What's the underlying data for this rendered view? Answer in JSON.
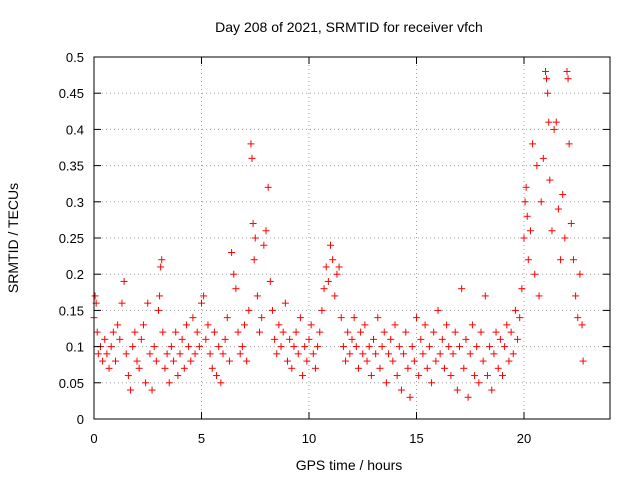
{
  "chart_data": {
    "type": "scatter",
    "title": "Day 208 of 2021, SRMTID for receiver vfch",
    "xlabel": "GPS time / hours",
    "ylabel": "SRMTID / TECUs",
    "xlim": [
      0,
      24
    ],
    "ylim": [
      0,
      0.5
    ],
    "x_ticks": [
      0,
      5,
      10,
      15,
      20
    ],
    "y_ticks": [
      0,
      0.05,
      0.1,
      0.15,
      0.2,
      0.25,
      0.3,
      0.35,
      0.4,
      0.45,
      0.5
    ],
    "x_tick_labels": [
      "0",
      "5",
      "10",
      "15",
      "20"
    ],
    "y_tick_labels": [
      "0",
      "0.05",
      "0.1",
      "0.15",
      "0.2",
      "0.25",
      "0.3",
      "0.35",
      "0.4",
      "0.45",
      "0.5"
    ],
    "grid": true,
    "marker": "+",
    "marker_color": "#ff0000",
    "series": [
      {
        "name": "SRMTID",
        "points": [
          [
            0.0,
            0.14
          ],
          [
            0.05,
            0.17
          ],
          [
            0.1,
            0.16
          ],
          [
            0.15,
            0.12
          ],
          [
            0.2,
            0.09
          ],
          [
            0.3,
            0.1
          ],
          [
            0.4,
            0.08
          ],
          [
            0.5,
            0.11
          ],
          [
            0.6,
            0.09
          ],
          [
            0.7,
            0.07
          ],
          [
            0.8,
            0.1
          ],
          [
            0.9,
            0.12
          ],
          [
            1.0,
            0.08
          ],
          [
            1.1,
            0.13
          ],
          [
            1.2,
            0.11
          ],
          [
            1.3,
            0.16
          ],
          [
            1.4,
            0.19
          ],
          [
            1.5,
            0.09
          ],
          [
            1.6,
            0.06
          ],
          [
            1.7,
            0.04
          ],
          [
            1.8,
            0.1
          ],
          [
            1.9,
            0.12
          ],
          [
            2.0,
            0.08
          ],
          [
            2.1,
            0.07
          ],
          [
            2.2,
            0.11
          ],
          [
            2.3,
            0.13
          ],
          [
            2.4,
            0.05
          ],
          [
            2.5,
            0.16
          ],
          [
            2.6,
            0.09
          ],
          [
            2.7,
            0.04
          ],
          [
            2.8,
            0.1
          ],
          [
            2.9,
            0.08
          ],
          [
            3.0,
            0.15
          ],
          [
            3.05,
            0.17
          ],
          [
            3.1,
            0.21
          ],
          [
            3.15,
            0.22
          ],
          [
            3.2,
            0.12
          ],
          [
            3.3,
            0.07
          ],
          [
            3.4,
            0.09
          ],
          [
            3.5,
            0.05
          ],
          [
            3.6,
            0.1
          ],
          [
            3.7,
            0.08
          ],
          [
            3.8,
            0.12
          ],
          [
            3.9,
            0.06
          ],
          [
            4.0,
            0.09
          ],
          [
            4.1,
            0.11
          ],
          [
            4.2,
            0.07
          ],
          [
            4.3,
            0.13
          ],
          [
            4.4,
            0.1
          ],
          [
            4.5,
            0.08
          ],
          [
            4.6,
            0.14
          ],
          [
            4.7,
            0.09
          ],
          [
            4.8,
            0.12
          ],
          [
            4.9,
            0.1
          ],
          [
            5.0,
            0.16
          ],
          [
            5.1,
            0.17
          ],
          [
            5.2,
            0.11
          ],
          [
            5.3,
            0.13
          ],
          [
            5.4,
            0.09
          ],
          [
            5.5,
            0.07
          ],
          [
            5.6,
            0.12
          ],
          [
            5.7,
            0.06
          ],
          [
            5.8,
            0.1
          ],
          [
            5.9,
            0.05
          ],
          [
            6.0,
            0.09
          ],
          [
            6.1,
            0.11
          ],
          [
            6.2,
            0.14
          ],
          [
            6.3,
            0.08
          ],
          [
            6.4,
            0.23
          ],
          [
            6.5,
            0.2
          ],
          [
            6.6,
            0.18
          ],
          [
            6.7,
            0.12
          ],
          [
            6.8,
            0.09
          ],
          [
            6.9,
            0.1
          ],
          [
            7.0,
            0.13
          ],
          [
            7.1,
            0.08
          ],
          [
            7.2,
            0.15
          ],
          [
            7.3,
            0.38
          ],
          [
            7.35,
            0.36
          ],
          [
            7.4,
            0.27
          ],
          [
            7.45,
            0.22
          ],
          [
            7.5,
            0.25
          ],
          [
            7.6,
            0.17
          ],
          [
            7.7,
            0.12
          ],
          [
            7.8,
            0.14
          ],
          [
            7.9,
            0.24
          ],
          [
            8.0,
            0.26
          ],
          [
            8.1,
            0.32
          ],
          [
            8.2,
            0.19
          ],
          [
            8.3,
            0.15
          ],
          [
            8.4,
            0.11
          ],
          [
            8.5,
            0.09
          ],
          [
            8.6,
            0.13
          ],
          [
            8.7,
            0.1
          ],
          [
            8.8,
            0.12
          ],
          [
            8.9,
            0.16
          ],
          [
            9.0,
            0.08
          ],
          [
            9.1,
            0.11
          ],
          [
            9.2,
            0.07
          ],
          [
            9.3,
            0.1
          ],
          [
            9.4,
            0.12
          ],
          [
            9.5,
            0.09
          ],
          [
            9.6,
            0.14
          ],
          [
            9.7,
            0.06
          ],
          [
            9.8,
            0.1
          ],
          [
            9.9,
            0.08
          ],
          [
            10.0,
            0.11
          ],
          [
            10.1,
            0.13
          ],
          [
            10.2,
            0.09
          ],
          [
            10.3,
            0.07
          ],
          [
            10.4,
            0.1
          ],
          [
            10.5,
            0.12
          ],
          [
            10.6,
            0.15
          ],
          [
            10.7,
            0.18
          ],
          [
            10.8,
            0.21
          ],
          [
            10.9,
            0.19
          ],
          [
            11.0,
            0.24
          ],
          [
            11.1,
            0.22
          ],
          [
            11.2,
            0.17
          ],
          [
            11.3,
            0.2
          ],
          [
            11.4,
            0.21
          ],
          [
            11.5,
            0.14
          ],
          [
            11.6,
            0.1
          ],
          [
            11.7,
            0.08
          ],
          [
            11.8,
            0.12
          ],
          [
            11.9,
            0.09
          ],
          [
            12.0,
            0.11
          ],
          [
            12.1,
            0.14
          ],
          [
            12.2,
            0.1
          ],
          [
            12.3,
            0.07
          ],
          [
            12.4,
            0.12
          ],
          [
            12.5,
            0.09
          ],
          [
            12.6,
            0.13
          ],
          [
            12.7,
            0.08
          ],
          [
            12.8,
            0.1
          ],
          [
            12.9,
            0.06
          ],
          [
            13.0,
            0.11
          ],
          [
            13.1,
            0.09
          ],
          [
            13.2,
            0.14
          ],
          [
            13.3,
            0.07
          ],
          [
            13.4,
            0.1
          ],
          [
            13.5,
            0.12
          ],
          [
            13.6,
            0.05
          ],
          [
            13.7,
            0.09
          ],
          [
            13.8,
            0.11
          ],
          [
            13.9,
            0.08
          ],
          [
            14.0,
            0.13
          ],
          [
            14.1,
            0.06
          ],
          [
            14.2,
            0.1
          ],
          [
            14.3,
            0.04
          ],
          [
            14.4,
            0.09
          ],
          [
            14.5,
            0.12
          ],
          [
            14.6,
            0.07
          ],
          [
            14.7,
            0.03
          ],
          [
            14.8,
            0.1
          ],
          [
            14.9,
            0.08
          ],
          [
            15.0,
            0.14
          ],
          [
            15.1,
            0.06
          ],
          [
            15.2,
            0.11
          ],
          [
            15.3,
            0.09
          ],
          [
            15.4,
            0.13
          ],
          [
            15.5,
            0.07
          ],
          [
            15.6,
            0.1
          ],
          [
            15.7,
            0.05
          ],
          [
            15.8,
            0.12
          ],
          [
            15.9,
            0.08
          ],
          [
            16.0,
            0.15
          ],
          [
            16.1,
            0.09
          ],
          [
            16.2,
            0.11
          ],
          [
            16.3,
            0.07
          ],
          [
            16.4,
            0.13
          ],
          [
            16.5,
            0.1
          ],
          [
            16.6,
            0.06
          ],
          [
            16.7,
            0.09
          ],
          [
            16.8,
            0.12
          ],
          [
            16.9,
            0.04
          ],
          [
            17.0,
            0.1
          ],
          [
            17.1,
            0.18
          ],
          [
            17.2,
            0.07
          ],
          [
            17.3,
            0.11
          ],
          [
            17.4,
            0.03
          ],
          [
            17.5,
            0.09
          ],
          [
            17.6,
            0.13
          ],
          [
            17.7,
            0.06
          ],
          [
            17.8,
            0.1
          ],
          [
            17.9,
            0.05
          ],
          [
            18.0,
            0.12
          ],
          [
            18.1,
            0.08
          ],
          [
            18.2,
            0.17
          ],
          [
            18.3,
            0.06
          ],
          [
            18.4,
            0.1
          ],
          [
            18.5,
            0.04
          ],
          [
            18.6,
            0.09
          ],
          [
            18.7,
            0.12
          ],
          [
            18.8,
            0.07
          ],
          [
            18.9,
            0.11
          ],
          [
            19.0,
            0.06
          ],
          [
            19.1,
            0.1
          ],
          [
            19.2,
            0.13
          ],
          [
            19.3,
            0.08
          ],
          [
            19.4,
            0.12
          ],
          [
            19.5,
            0.09
          ],
          [
            19.6,
            0.15
          ],
          [
            19.7,
            0.11
          ],
          [
            19.8,
            0.14
          ],
          [
            19.9,
            0.18
          ],
          [
            20.0,
            0.25
          ],
          [
            20.05,
            0.3
          ],
          [
            20.1,
            0.32
          ],
          [
            20.15,
            0.28
          ],
          [
            20.2,
            0.22
          ],
          [
            20.3,
            0.26
          ],
          [
            20.4,
            0.38
          ],
          [
            20.5,
            0.2
          ],
          [
            20.6,
            0.35
          ],
          [
            20.7,
            0.17
          ],
          [
            20.8,
            0.3
          ],
          [
            20.9,
            0.36
          ],
          [
            21.0,
            0.48
          ],
          [
            21.05,
            0.47
          ],
          [
            21.1,
            0.45
          ],
          [
            21.15,
            0.41
          ],
          [
            21.2,
            0.33
          ],
          [
            21.3,
            0.26
          ],
          [
            21.4,
            0.4
          ],
          [
            21.5,
            0.41
          ],
          [
            21.6,
            0.29
          ],
          [
            21.7,
            0.22
          ],
          [
            21.8,
            0.31
          ],
          [
            21.9,
            0.25
          ],
          [
            22.0,
            0.48
          ],
          [
            22.05,
            0.47
          ],
          [
            22.1,
            0.38
          ],
          [
            22.2,
            0.27
          ],
          [
            22.3,
            0.22
          ],
          [
            22.4,
            0.17
          ],
          [
            22.5,
            0.14
          ],
          [
            22.6,
            0.2
          ],
          [
            22.7,
            0.13
          ],
          [
            22.75,
            0.08
          ]
        ]
      }
    ]
  }
}
